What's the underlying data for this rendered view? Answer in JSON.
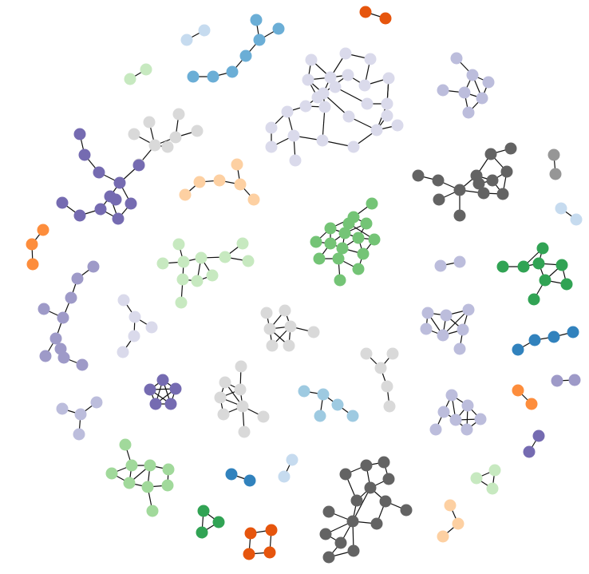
{
  "palette": {
    "dark_orange": "#e6550d",
    "orange": "#fd8d3c",
    "peach": "#fdd0a2",
    "dark_blue": "#3182bd",
    "blue": "#6baed6",
    "light_blue": "#9ecae1",
    "pale_blue": "#c6dbef",
    "dark_green": "#31a354",
    "green": "#74c476",
    "light_green": "#a1d99b",
    "pale_green": "#c7e9c0",
    "dark_purple": "#756bb1",
    "purple": "#9e9ac8",
    "light_purple": "#bcbddc",
    "pale_purple": "#dadaeb",
    "dark_gray": "#636363",
    "gray": "#969696",
    "light_gray": "#d9d9d9"
  },
  "components": [
    {
      "id": "c01",
      "color": "dark_orange",
      "nodes": 2,
      "edges": 1
    },
    {
      "id": "c02",
      "color": "pale_blue",
      "nodes": 2,
      "edges": 1
    },
    {
      "id": "c03",
      "color": "blue",
      "nodes": 7,
      "edges": 6
    },
    {
      "id": "c04",
      "color": "pale_green",
      "nodes": 2,
      "edges": 1
    },
    {
      "id": "c05",
      "color": "pale_purple",
      "nodes": 26,
      "edges": 36
    },
    {
      "id": "c06",
      "color": "light_purple",
      "nodes": 7,
      "edges": 9
    },
    {
      "id": "c07",
      "color": "light_gray",
      "nodes": 8,
      "edges": 7
    },
    {
      "id": "c08",
      "color": "dark_purple",
      "nodes": 12,
      "edges": 14
    },
    {
      "id": "c09",
      "color": "dark_gray",
      "nodes": 13,
      "edges": 17
    },
    {
      "id": "c10",
      "color": "gray",
      "nodes": 2,
      "edges": 1
    },
    {
      "id": "c11",
      "color": "peach",
      "nodes": 6,
      "edges": 5
    },
    {
      "id": "c12",
      "color": "pale_blue",
      "nodes": 2,
      "edges": 1
    },
    {
      "id": "c13",
      "color": "orange",
      "nodes": 3,
      "edges": 2
    },
    {
      "id": "c14",
      "color": "green",
      "nodes": 16,
      "edges": 28
    },
    {
      "id": "c15",
      "color": "pale_green",
      "nodes": 11,
      "edges": 12
    },
    {
      "id": "c16",
      "color": "light_purple",
      "nodes": 2,
      "edges": 1
    },
    {
      "id": "c17",
      "color": "dark_green",
      "nodes": 8,
      "edges": 10
    },
    {
      "id": "c18",
      "color": "purple",
      "nodes": 10,
      "edges": 9
    },
    {
      "id": "c19",
      "color": "pale_purple",
      "nodes": 5,
      "edges": 4
    },
    {
      "id": "c20",
      "color": "light_gray",
      "nodes": 7,
      "edges": 9
    },
    {
      "id": "c21",
      "color": "light_purple",
      "nodes": 7,
      "edges": 10
    },
    {
      "id": "c22",
      "color": "dark_blue",
      "nodes": 4,
      "edges": 3
    },
    {
      "id": "c23",
      "color": "light_gray",
      "nodes": 5,
      "edges": 4
    },
    {
      "id": "c24",
      "color": "dark_purple",
      "nodes": 5,
      "edges": 10
    },
    {
      "id": "c25",
      "color": "light_gray",
      "nodes": 8,
      "edges": 11
    },
    {
      "id": "c26",
      "color": "light_blue",
      "nodes": 5,
      "edges": 4
    },
    {
      "id": "c27",
      "color": "orange",
      "nodes": 2,
      "edges": 1
    },
    {
      "id": "c28",
      "color": "purple",
      "nodes": 2,
      "edges": 1
    },
    {
      "id": "c29",
      "color": "light_purple",
      "nodes": 4,
      "edges": 3
    },
    {
      "id": "c30",
      "color": "light_purple",
      "nodes": 7,
      "edges": 11
    },
    {
      "id": "c31",
      "color": "dark_purple",
      "nodes": 2,
      "edges": 1
    },
    {
      "id": "c32",
      "color": "light_green",
      "nodes": 9,
      "edges": 12
    },
    {
      "id": "c33",
      "color": "dark_blue",
      "nodes": 2,
      "edges": 1
    },
    {
      "id": "c34",
      "color": "pale_blue",
      "nodes": 2,
      "edges": 1
    },
    {
      "id": "c35",
      "color": "dark_gray",
      "nodes": 14,
      "edges": 20
    },
    {
      "id": "c36",
      "color": "pale_green",
      "nodes": 3,
      "edges": 3
    },
    {
      "id": "c37",
      "color": "dark_green",
      "nodes": 3,
      "edges": 3
    },
    {
      "id": "c38",
      "color": "dark_orange",
      "nodes": 4,
      "edges": 4
    },
    {
      "id": "c39",
      "color": "peach",
      "nodes": 3,
      "edges": 2
    }
  ]
}
